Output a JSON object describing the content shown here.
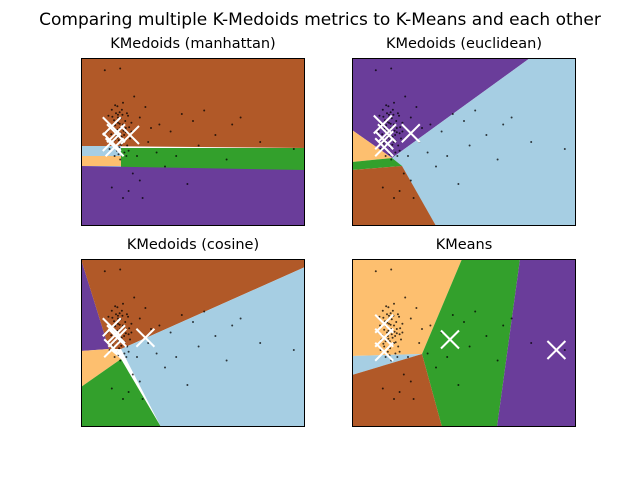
{
  "figure": {
    "suptitle": "Comparing multiple K-Medoids metrics to K-Means and each other",
    "colors": {
      "purple": "#6a3d9a",
      "brown": "#b15928",
      "lightblue": "#a6cee3",
      "green": "#33a02c",
      "orange": "#fdbf6f",
      "frame": "#000000",
      "center_marker": "#ffffff",
      "points": "#000000"
    }
  },
  "chart_data": [
    {
      "type": "scatter",
      "title": "KMedoids (manhattan)",
      "grid": false,
      "n_clusters": 5,
      "regions": [
        "brown",
        "lightblue",
        "orange",
        "green",
        "purple"
      ],
      "centers": [
        [
          -0.1,
          0.25
        ],
        [
          0.05,
          0.05
        ],
        [
          0.55,
          0.0
        ],
        [
          -0.1,
          -0.2
        ],
        [
          0.0,
          -0.35
        ]
      ]
    },
    {
      "type": "scatter",
      "title": "KMedoids (euclidean)",
      "grid": false,
      "n_clusters": 5,
      "regions": [
        "purple",
        "lightblue",
        "orange",
        "green",
        "brown"
      ],
      "centers": [
        [
          -0.1,
          0.3
        ],
        [
          0.05,
          0.05
        ],
        [
          0.9,
          0.05
        ],
        [
          -0.05,
          -0.15
        ],
        [
          -0.05,
          -0.35
        ]
      ]
    },
    {
      "type": "scatter",
      "title": "KMedoids (cosine)",
      "grid": false,
      "n_clusters": 5,
      "regions": [
        "purple",
        "brown",
        "lightblue",
        "orange",
        "green"
      ],
      "centers": [
        [
          -0.1,
          0.25
        ],
        [
          0.05,
          0.05
        ],
        [
          0.1,
          -0.05
        ],
        [
          1.1,
          -0.05
        ],
        [
          -0.05,
          -0.35
        ]
      ]
    },
    {
      "type": "scatter",
      "title": "KMeans",
      "grid": false,
      "n_clusters": 5,
      "regions": [
        "orange",
        "green",
        "purple",
        "lightblue",
        "brown"
      ],
      "centers": [
        [
          -0.05,
          0.35
        ],
        [
          -0.05,
          -0.05
        ],
        [
          2.3,
          -0.1
        ],
        [
          6.1,
          -0.4
        ],
        [
          -0.05,
          -0.45
        ]
      ]
    }
  ],
  "points": [
    [
      0.05,
      0.1
    ],
    [
      0.12,
      0.35
    ],
    [
      -0.08,
      0.52
    ],
    [
      0.3,
      -0.2
    ],
    [
      0.22,
      0.48
    ],
    [
      -0.15,
      -0.1
    ],
    [
      0.4,
      0.2
    ],
    [
      0.08,
      -0.45
    ],
    [
      -0.2,
      0.3
    ],
    [
      0.5,
      0.05
    ],
    [
      0.18,
      0.65
    ],
    [
      -0.05,
      -0.3
    ],
    [
      0.35,
      -0.5
    ],
    [
      0.6,
      0.35
    ],
    [
      -0.25,
      0.1
    ],
    [
      0.1,
      0.82
    ],
    [
      0.25,
      -0.05
    ],
    [
      0.45,
      -0.3
    ],
    [
      0.02,
      0.28
    ],
    [
      0.15,
      -0.15
    ],
    [
      0.32,
      0.12
    ],
    [
      -0.1,
      0.72
    ],
    [
      0.55,
      -0.1
    ],
    [
      0.28,
      0.58
    ],
    [
      0.0,
      -0.6
    ],
    [
      0.38,
      0.4
    ],
    [
      0.08,
      0.0
    ],
    [
      0.2,
      0.2
    ],
    [
      -0.18,
      -0.4
    ],
    [
      0.12,
      0.5
    ],
    [
      0.42,
      -0.6
    ],
    [
      0.05,
      0.62
    ],
    [
      0.3,
      0.3
    ],
    [
      -0.12,
      0.02
    ],
    [
      0.48,
      0.55
    ],
    [
      0.16,
      -0.35
    ],
    [
      0.22,
      0.05
    ],
    [
      -0.02,
      0.42
    ],
    [
      0.36,
      -0.18
    ],
    [
      0.1,
      0.15
    ],
    [
      0.26,
      0.72
    ],
    [
      0.0,
      -0.15
    ],
    [
      0.52,
      0.22
    ],
    [
      -0.22,
      0.55
    ],
    [
      0.14,
      -0.55
    ],
    [
      0.34,
      0.0
    ],
    [
      0.06,
      0.38
    ],
    [
      0.44,
      0.62
    ],
    [
      -0.08,
      -0.22
    ],
    [
      0.2,
      -0.7
    ],
    [
      0.3,
      0.92
    ],
    [
      0.1,
      -0.08
    ],
    [
      0.4,
      0.08
    ],
    [
      -0.05,
      0.18
    ],
    [
      0.18,
      0.32
    ],
    [
      0.24,
      -0.28
    ],
    [
      0.5,
      -0.45
    ],
    [
      0.02,
      0.85
    ],
    [
      0.6,
      0.1
    ],
    [
      0.12,
      0.58
    ],
    [
      0.9,
      0.5
    ],
    [
      1.2,
      -0.2
    ],
    [
      0.8,
      -0.6
    ],
    [
      1.6,
      0.3
    ],
    [
      1.1,
      0.8
    ],
    [
      2.0,
      0.1
    ],
    [
      1.5,
      -0.5
    ],
    [
      2.4,
      0.6
    ],
    [
      3.0,
      -0.3
    ],
    [
      2.8,
      0.4
    ],
    [
      3.6,
      0.0
    ],
    [
      4.0,
      -0.7
    ],
    [
      4.5,
      0.5
    ],
    [
      5.2,
      -0.2
    ],
    [
      6.4,
      -0.4
    ],
    [
      1.8,
      -0.9
    ],
    [
      0.7,
      1.1
    ],
    [
      0.9,
      -1.3
    ],
    [
      3.2,
      0.7
    ],
    [
      2.2,
      -0.6
    ],
    [
      1.3,
      0.2
    ],
    [
      0.3,
      -1.8
    ],
    [
      0.5,
      -1.6
    ],
    [
      0.2,
      1.9
    ],
    [
      -0.35,
      1.85
    ],
    [
      2.6,
      -1.4
    ],
    [
      1.0,
      -1.8
    ],
    [
      4.2,
      0.3
    ],
    [
      0.65,
      -1.1
    ],
    [
      -0.1,
      -1.5
    ]
  ]
}
